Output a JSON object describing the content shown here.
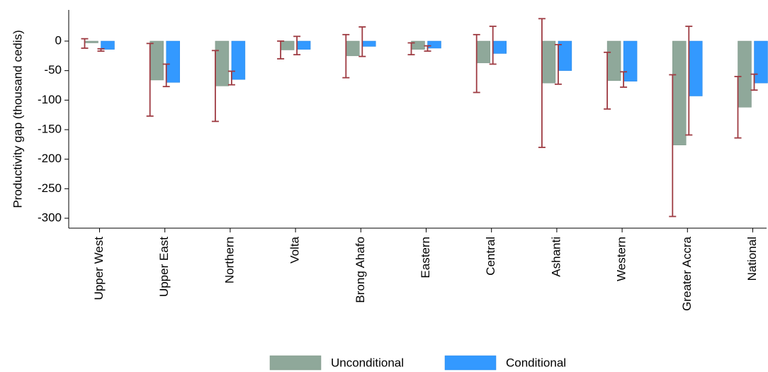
{
  "chart_data": {
    "type": "bar",
    "ylabel": "Productivity gap (thousand cedis)",
    "xlabel": "",
    "ylim": [
      -310,
      35
    ],
    "yticks": [
      0,
      -50,
      -100,
      -150,
      -200,
      -250,
      -300
    ],
    "categories": [
      "Upper West",
      "Upper East",
      "Northern",
      "Volta",
      "Brong Ahafo",
      "Eastern",
      "Central",
      "Ashanti",
      "Western",
      "Greater Accra",
      "National"
    ],
    "series": [
      {
        "name": "Unconditional",
        "color": "#8fa89a",
        "values": [
          -3,
          -66,
          -76,
          -15,
          -25,
          -14,
          -37,
          -71,
          -67,
          -176,
          -112
        ],
        "ci_low": [
          -12,
          -127,
          -136,
          -30,
          -62,
          -23,
          -87,
          -180,
          -115,
          -297,
          -164
        ],
        "ci_high": [
          4,
          -4,
          -16,
          0,
          11,
          -3,
          11,
          38,
          -19,
          -57,
          -60
        ]
      },
      {
        "name": "Conditional",
        "color": "#3399ff",
        "values": [
          -14,
          -70,
          -65,
          -14,
          -9,
          -12,
          -21,
          -50,
          -68,
          -93,
          -71
        ],
        "ci_low": [
          -17,
          -77,
          -74,
          -23,
          -26,
          -17,
          -39,
          -73,
          -78,
          -159,
          -83
        ],
        "ci_high": [
          -13,
          -39,
          -51,
          8,
          24,
          -8,
          25,
          -6,
          -52,
          25,
          -56
        ]
      }
    ],
    "error_bar_color": "#9e3b42",
    "legend_position": "bottom-center",
    "grid": false
  }
}
